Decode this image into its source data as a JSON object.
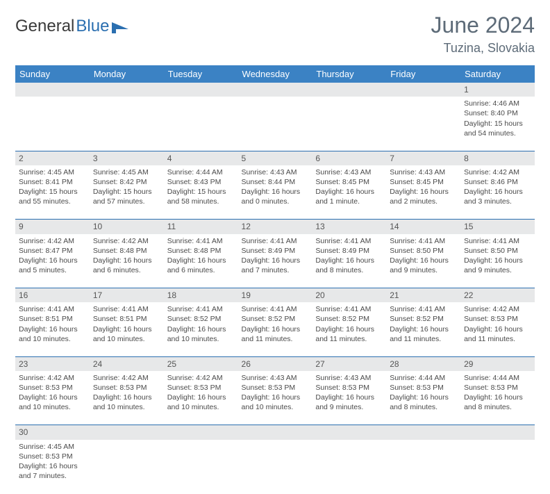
{
  "brand": {
    "word1": "General",
    "word2": "Blue"
  },
  "header": {
    "month_title": "June 2024",
    "location": "Tuzina, Slovakia"
  },
  "colors": {
    "header_bg": "#3b82c4",
    "row_divider": "#2b6fb0",
    "daynum_bg": "#e7e8e9",
    "title_color": "#5d6b78"
  },
  "day_labels": [
    "Sunday",
    "Monday",
    "Tuesday",
    "Wednesday",
    "Thursday",
    "Friday",
    "Saturday"
  ],
  "weeks": [
    {
      "nums": [
        "",
        "",
        "",
        "",
        "",
        "",
        "1"
      ],
      "cells": [
        null,
        null,
        null,
        null,
        null,
        null,
        {
          "sunrise": "Sunrise: 4:46 AM",
          "sunset": "Sunset: 8:40 PM",
          "day1": "Daylight: 15 hours",
          "day2": "and 54 minutes."
        }
      ]
    },
    {
      "nums": [
        "2",
        "3",
        "4",
        "5",
        "6",
        "7",
        "8"
      ],
      "cells": [
        {
          "sunrise": "Sunrise: 4:45 AM",
          "sunset": "Sunset: 8:41 PM",
          "day1": "Daylight: 15 hours",
          "day2": "and 55 minutes."
        },
        {
          "sunrise": "Sunrise: 4:45 AM",
          "sunset": "Sunset: 8:42 PM",
          "day1": "Daylight: 15 hours",
          "day2": "and 57 minutes."
        },
        {
          "sunrise": "Sunrise: 4:44 AM",
          "sunset": "Sunset: 8:43 PM",
          "day1": "Daylight: 15 hours",
          "day2": "and 58 minutes."
        },
        {
          "sunrise": "Sunrise: 4:43 AM",
          "sunset": "Sunset: 8:44 PM",
          "day1": "Daylight: 16 hours",
          "day2": "and 0 minutes."
        },
        {
          "sunrise": "Sunrise: 4:43 AM",
          "sunset": "Sunset: 8:45 PM",
          "day1": "Daylight: 16 hours",
          "day2": "and 1 minute."
        },
        {
          "sunrise": "Sunrise: 4:43 AM",
          "sunset": "Sunset: 8:45 PM",
          "day1": "Daylight: 16 hours",
          "day2": "and 2 minutes."
        },
        {
          "sunrise": "Sunrise: 4:42 AM",
          "sunset": "Sunset: 8:46 PM",
          "day1": "Daylight: 16 hours",
          "day2": "and 3 minutes."
        }
      ]
    },
    {
      "nums": [
        "9",
        "10",
        "11",
        "12",
        "13",
        "14",
        "15"
      ],
      "cells": [
        {
          "sunrise": "Sunrise: 4:42 AM",
          "sunset": "Sunset: 8:47 PM",
          "day1": "Daylight: 16 hours",
          "day2": "and 5 minutes."
        },
        {
          "sunrise": "Sunrise: 4:42 AM",
          "sunset": "Sunset: 8:48 PM",
          "day1": "Daylight: 16 hours",
          "day2": "and 6 minutes."
        },
        {
          "sunrise": "Sunrise: 4:41 AM",
          "sunset": "Sunset: 8:48 PM",
          "day1": "Daylight: 16 hours",
          "day2": "and 6 minutes."
        },
        {
          "sunrise": "Sunrise: 4:41 AM",
          "sunset": "Sunset: 8:49 PM",
          "day1": "Daylight: 16 hours",
          "day2": "and 7 minutes."
        },
        {
          "sunrise": "Sunrise: 4:41 AM",
          "sunset": "Sunset: 8:49 PM",
          "day1": "Daylight: 16 hours",
          "day2": "and 8 minutes."
        },
        {
          "sunrise": "Sunrise: 4:41 AM",
          "sunset": "Sunset: 8:50 PM",
          "day1": "Daylight: 16 hours",
          "day2": "and 9 minutes."
        },
        {
          "sunrise": "Sunrise: 4:41 AM",
          "sunset": "Sunset: 8:50 PM",
          "day1": "Daylight: 16 hours",
          "day2": "and 9 minutes."
        }
      ]
    },
    {
      "nums": [
        "16",
        "17",
        "18",
        "19",
        "20",
        "21",
        "22"
      ],
      "cells": [
        {
          "sunrise": "Sunrise: 4:41 AM",
          "sunset": "Sunset: 8:51 PM",
          "day1": "Daylight: 16 hours",
          "day2": "and 10 minutes."
        },
        {
          "sunrise": "Sunrise: 4:41 AM",
          "sunset": "Sunset: 8:51 PM",
          "day1": "Daylight: 16 hours",
          "day2": "and 10 minutes."
        },
        {
          "sunrise": "Sunrise: 4:41 AM",
          "sunset": "Sunset: 8:52 PM",
          "day1": "Daylight: 16 hours",
          "day2": "and 10 minutes."
        },
        {
          "sunrise": "Sunrise: 4:41 AM",
          "sunset": "Sunset: 8:52 PM",
          "day1": "Daylight: 16 hours",
          "day2": "and 11 minutes."
        },
        {
          "sunrise": "Sunrise: 4:41 AM",
          "sunset": "Sunset: 8:52 PM",
          "day1": "Daylight: 16 hours",
          "day2": "and 11 minutes."
        },
        {
          "sunrise": "Sunrise: 4:41 AM",
          "sunset": "Sunset: 8:52 PM",
          "day1": "Daylight: 16 hours",
          "day2": "and 11 minutes."
        },
        {
          "sunrise": "Sunrise: 4:42 AM",
          "sunset": "Sunset: 8:53 PM",
          "day1": "Daylight: 16 hours",
          "day2": "and 11 minutes."
        }
      ]
    },
    {
      "nums": [
        "23",
        "24",
        "25",
        "26",
        "27",
        "28",
        "29"
      ],
      "cells": [
        {
          "sunrise": "Sunrise: 4:42 AM",
          "sunset": "Sunset: 8:53 PM",
          "day1": "Daylight: 16 hours",
          "day2": "and 10 minutes."
        },
        {
          "sunrise": "Sunrise: 4:42 AM",
          "sunset": "Sunset: 8:53 PM",
          "day1": "Daylight: 16 hours",
          "day2": "and 10 minutes."
        },
        {
          "sunrise": "Sunrise: 4:42 AM",
          "sunset": "Sunset: 8:53 PM",
          "day1": "Daylight: 16 hours",
          "day2": "and 10 minutes."
        },
        {
          "sunrise": "Sunrise: 4:43 AM",
          "sunset": "Sunset: 8:53 PM",
          "day1": "Daylight: 16 hours",
          "day2": "and 10 minutes."
        },
        {
          "sunrise": "Sunrise: 4:43 AM",
          "sunset": "Sunset: 8:53 PM",
          "day1": "Daylight: 16 hours",
          "day2": "and 9 minutes."
        },
        {
          "sunrise": "Sunrise: 4:44 AM",
          "sunset": "Sunset: 8:53 PM",
          "day1": "Daylight: 16 hours",
          "day2": "and 8 minutes."
        },
        {
          "sunrise": "Sunrise: 4:44 AM",
          "sunset": "Sunset: 8:53 PM",
          "day1": "Daylight: 16 hours",
          "day2": "and 8 minutes."
        }
      ]
    },
    {
      "nums": [
        "30",
        "",
        "",
        "",
        "",
        "",
        ""
      ],
      "cells": [
        {
          "sunrise": "Sunrise: 4:45 AM",
          "sunset": "Sunset: 8:53 PM",
          "day1": "Daylight: 16 hours",
          "day2": "and 7 minutes."
        },
        null,
        null,
        null,
        null,
        null,
        null
      ]
    }
  ]
}
